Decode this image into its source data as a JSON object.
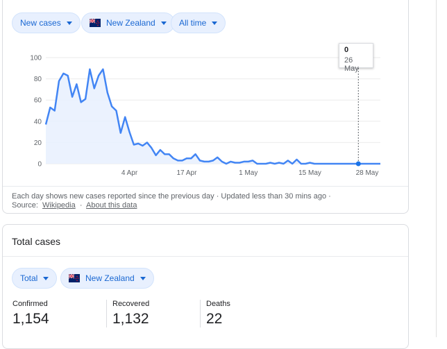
{
  "filters": {
    "metric": "New cases",
    "location": "New Zealand",
    "range": "All time"
  },
  "chart_data": {
    "type": "line",
    "x": [
      "Mar 16",
      "Mar 17",
      "Mar 18",
      "Mar 19",
      "Mar 20",
      "Mar 21",
      "Mar 22",
      "Mar 23",
      "Mar 24",
      "Mar 25",
      "Mar 26",
      "Mar 27",
      "Mar 28",
      "Mar 29",
      "Mar 30",
      "Mar 31",
      "Apr 1",
      "Apr 2",
      "Apr 3",
      "Apr 4",
      "Apr 5",
      "Apr 6",
      "Apr 7",
      "Apr 8",
      "Apr 9",
      "Apr 10",
      "Apr 11",
      "Apr 12",
      "Apr 13",
      "Apr 14",
      "Apr 15",
      "Apr 16",
      "Apr 17",
      "Apr 18",
      "Apr 19",
      "Apr 20",
      "Apr 21",
      "Apr 22",
      "Apr 23",
      "Apr 24",
      "Apr 25",
      "Apr 26",
      "Apr 27",
      "Apr 28",
      "Apr 29",
      "Apr 30",
      "May 1",
      "May 2",
      "May 3",
      "May 4",
      "May 5",
      "May 6",
      "May 7",
      "May 8",
      "May 9",
      "May 10",
      "May 11",
      "May 12",
      "May 13",
      "May 14",
      "May 15",
      "May 16",
      "May 17",
      "May 18",
      "May 19",
      "May 20",
      "May 21",
      "May 22",
      "May 23",
      "May 24",
      "May 25",
      "May 26",
      "May 27",
      "May 28",
      "May 29",
      "May 30",
      "May 31"
    ],
    "values": [
      37,
      53,
      50,
      78,
      85,
      83,
      63,
      75,
      58,
      61,
      89,
      71,
      83,
      89,
      67,
      54,
      50,
      29,
      44,
      30,
      18,
      19,
      17,
      20,
      15,
      8,
      13,
      9,
      9,
      5,
      3,
      3,
      5,
      5,
      9,
      3,
      2,
      2,
      3,
      6,
      2,
      0,
      2,
      1,
      1,
      2,
      2,
      3,
      0,
      0,
      0,
      1,
      0,
      1,
      0,
      3,
      0,
      4,
      0,
      0,
      1,
      0,
      0,
      0,
      0,
      0,
      0,
      0,
      0,
      0,
      0,
      0,
      0,
      0,
      0,
      0,
      0
    ],
    "x_ticks": [
      "4 Apr",
      "17 Apr",
      "1 May",
      "15 May",
      "28 May"
    ],
    "y_ticks": [
      "0",
      "20",
      "40",
      "60",
      "80",
      "100"
    ],
    "ylim": [
      0,
      100
    ],
    "line_color": "#4285f4",
    "fill_color": "#e8f0fe",
    "grid": true,
    "tooltip": {
      "value": "0",
      "date": "26 May"
    }
  },
  "footer": {
    "note": "Each day shows new cases reported since the previous day · Updated less than 30 mins ago ·",
    "source_label": "Source:",
    "source_link": "Wikipedia",
    "separator": "·",
    "about_link": "About this data"
  },
  "totals": {
    "title": "Total cases",
    "filter_type": "Total",
    "filter_location": "New Zealand",
    "stats": [
      {
        "label": "Confirmed",
        "value": "1,154"
      },
      {
        "label": "Recovered",
        "value": "1,132"
      },
      {
        "label": "Deaths",
        "value": "22"
      }
    ]
  },
  "colors": {
    "accent": "#1967d2",
    "chip_bg": "#e8f0fe",
    "line": "#4285f4"
  },
  "icons": [
    "caret-down-icon",
    "new-zealand-flag-icon"
  ]
}
